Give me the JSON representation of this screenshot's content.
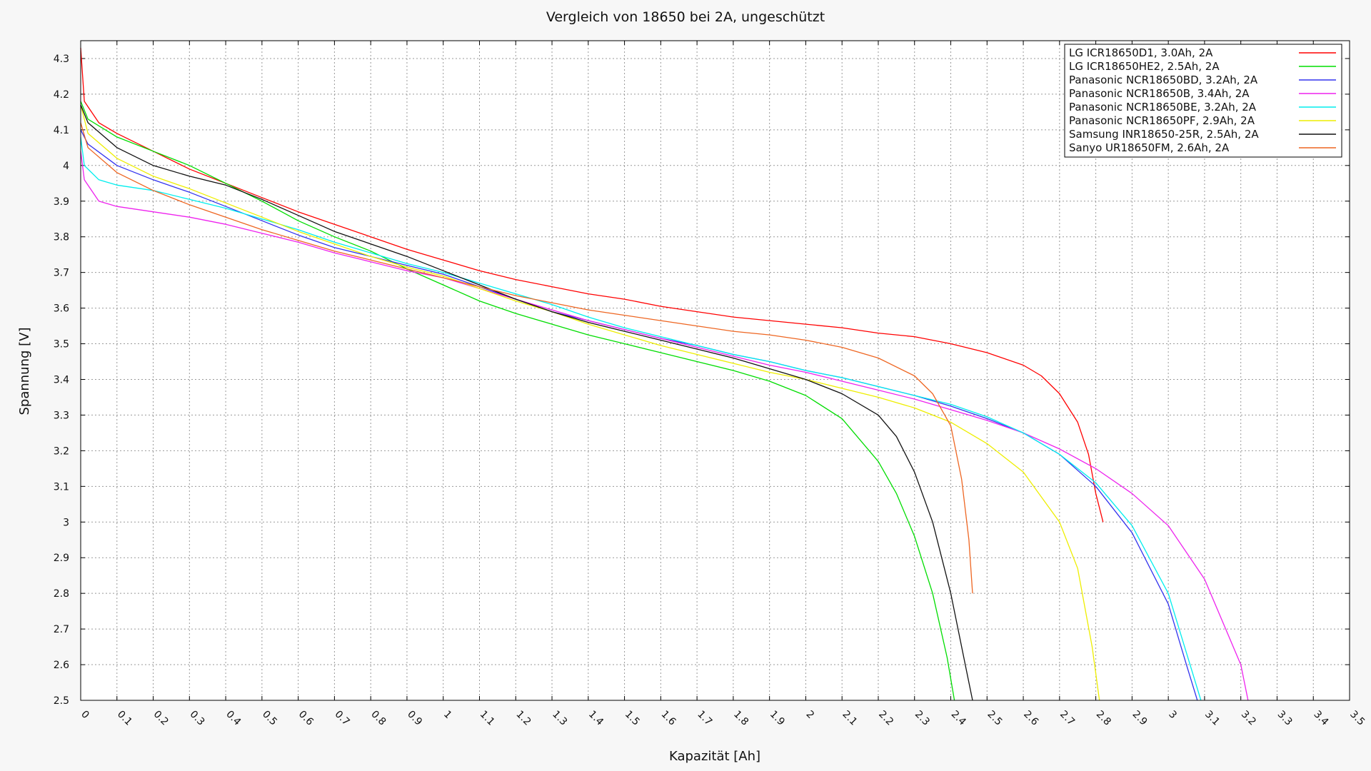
{
  "chart_data": {
    "type": "line",
    "title": "Vergleich von 18650 bei 2A, ungeschützt",
    "xlabel": "Kapazität [Ah]",
    "ylabel": "Spannung [V]",
    "xlim": [
      0,
      3.5
    ],
    "ylim": [
      2.5,
      4.35
    ],
    "xticks": [
      0,
      0.1,
      0.2,
      0.3,
      0.4,
      0.5,
      0.6,
      0.7,
      0.8,
      0.9,
      1,
      1.1,
      1.2,
      1.3,
      1.4,
      1.5,
      1.6,
      1.7,
      1.8,
      1.9,
      2,
      2.1,
      2.2,
      2.3,
      2.4,
      2.5,
      2.6,
      2.7,
      2.8,
      2.9,
      3,
      3.1,
      3.2,
      3.3,
      3.4,
      3.5
    ],
    "yticks": [
      2.5,
      2.6,
      2.7,
      2.8,
      2.9,
      3,
      3.1,
      3.2,
      3.3,
      3.4,
      3.5,
      3.6,
      3.7,
      3.8,
      3.9,
      4,
      4.1,
      4.2,
      4.3
    ],
    "grid": true,
    "legend_position": "top-right",
    "series": [
      {
        "name": "LG ICR18650D1, 3.0Ah, 2A",
        "color": "#ff0000",
        "points": [
          [
            0,
            4.33
          ],
          [
            0.01,
            4.18
          ],
          [
            0.05,
            4.12
          ],
          [
            0.1,
            4.09
          ],
          [
            0.2,
            4.04
          ],
          [
            0.3,
            3.99
          ],
          [
            0.4,
            3.95
          ],
          [
            0.5,
            3.91
          ],
          [
            0.6,
            3.87
          ],
          [
            0.7,
            3.835
          ],
          [
            0.8,
            3.8
          ],
          [
            0.9,
            3.765
          ],
          [
            1.0,
            3.735
          ],
          [
            1.1,
            3.705
          ],
          [
            1.2,
            3.68
          ],
          [
            1.3,
            3.66
          ],
          [
            1.4,
            3.64
          ],
          [
            1.5,
            3.625
          ],
          [
            1.6,
            3.605
          ],
          [
            1.7,
            3.59
          ],
          [
            1.8,
            3.575
          ],
          [
            1.9,
            3.565
          ],
          [
            2.0,
            3.555
          ],
          [
            2.1,
            3.545
          ],
          [
            2.2,
            3.53
          ],
          [
            2.3,
            3.52
          ],
          [
            2.4,
            3.5
          ],
          [
            2.5,
            3.475
          ],
          [
            2.6,
            3.44
          ],
          [
            2.65,
            3.41
          ],
          [
            2.7,
            3.36
          ],
          [
            2.75,
            3.28
          ],
          [
            2.78,
            3.19
          ],
          [
            2.8,
            3.08
          ],
          [
            2.82,
            3.0
          ]
        ]
      },
      {
        "name": "LG ICR18650HE2, 2.5Ah, 2A",
        "color": "#00dd00",
        "points": [
          [
            0,
            4.18
          ],
          [
            0.02,
            4.13
          ],
          [
            0.1,
            4.08
          ],
          [
            0.2,
            4.04
          ],
          [
            0.3,
            4.0
          ],
          [
            0.4,
            3.95
          ],
          [
            0.5,
            3.9
          ],
          [
            0.6,
            3.845
          ],
          [
            0.7,
            3.8
          ],
          [
            0.8,
            3.76
          ],
          [
            0.9,
            3.71
          ],
          [
            1.0,
            3.665
          ],
          [
            1.1,
            3.62
          ],
          [
            1.2,
            3.585
          ],
          [
            1.3,
            3.555
          ],
          [
            1.4,
            3.525
          ],
          [
            1.5,
            3.5
          ],
          [
            1.6,
            3.475
          ],
          [
            1.7,
            3.45
          ],
          [
            1.8,
            3.425
          ],
          [
            1.9,
            3.395
          ],
          [
            2.0,
            3.355
          ],
          [
            2.1,
            3.29
          ],
          [
            2.2,
            3.17
          ],
          [
            2.25,
            3.08
          ],
          [
            2.3,
            2.96
          ],
          [
            2.35,
            2.8
          ],
          [
            2.39,
            2.62
          ],
          [
            2.41,
            2.5
          ]
        ]
      },
      {
        "name": "Panasonic NCR18650BD, 3.2Ah, 2A",
        "color": "#3333ee",
        "points": [
          [
            0,
            4.1
          ],
          [
            0.02,
            4.06
          ],
          [
            0.1,
            4.0
          ],
          [
            0.2,
            3.96
          ],
          [
            0.3,
            3.925
          ],
          [
            0.4,
            3.885
          ],
          [
            0.5,
            3.845
          ],
          [
            0.6,
            3.805
          ],
          [
            0.7,
            3.77
          ],
          [
            0.8,
            3.745
          ],
          [
            0.9,
            3.72
          ],
          [
            1.0,
            3.695
          ],
          [
            1.1,
            3.66
          ],
          [
            1.2,
            3.625
          ],
          [
            1.3,
            3.59
          ],
          [
            1.4,
            3.565
          ],
          [
            1.5,
            3.54
          ],
          [
            1.6,
            3.515
          ],
          [
            1.7,
            3.495
          ],
          [
            1.8,
            3.47
          ],
          [
            1.9,
            3.45
          ],
          [
            2.0,
            3.425
          ],
          [
            2.1,
            3.405
          ],
          [
            2.2,
            3.38
          ],
          [
            2.3,
            3.355
          ],
          [
            2.4,
            3.325
          ],
          [
            2.5,
            3.29
          ],
          [
            2.6,
            3.25
          ],
          [
            2.7,
            3.19
          ],
          [
            2.8,
            3.1
          ],
          [
            2.9,
            2.97
          ],
          [
            3.0,
            2.77
          ],
          [
            3.05,
            2.6
          ],
          [
            3.08,
            2.5
          ]
        ]
      },
      {
        "name": "Panasonic NCR18650B, 3.4Ah, 2A",
        "color": "#ee22ee",
        "points": [
          [
            0,
            4.04
          ],
          [
            0.01,
            3.96
          ],
          [
            0.05,
            3.9
          ],
          [
            0.1,
            3.885
          ],
          [
            0.2,
            3.87
          ],
          [
            0.3,
            3.855
          ],
          [
            0.4,
            3.835
          ],
          [
            0.5,
            3.81
          ],
          [
            0.6,
            3.785
          ],
          [
            0.7,
            3.755
          ],
          [
            0.8,
            3.73
          ],
          [
            0.9,
            3.705
          ],
          [
            1.0,
            3.685
          ],
          [
            1.1,
            3.655
          ],
          [
            1.2,
            3.625
          ],
          [
            1.3,
            3.595
          ],
          [
            1.4,
            3.565
          ],
          [
            1.5,
            3.54
          ],
          [
            1.6,
            3.515
          ],
          [
            1.7,
            3.49
          ],
          [
            1.8,
            3.465
          ],
          [
            1.9,
            3.44
          ],
          [
            2.0,
            3.42
          ],
          [
            2.1,
            3.395
          ],
          [
            2.2,
            3.37
          ],
          [
            2.3,
            3.345
          ],
          [
            2.4,
            3.315
          ],
          [
            2.5,
            3.285
          ],
          [
            2.6,
            3.25
          ],
          [
            2.7,
            3.205
          ],
          [
            2.8,
            3.15
          ],
          [
            2.9,
            3.08
          ],
          [
            3.0,
            2.99
          ],
          [
            3.1,
            2.84
          ],
          [
            3.2,
            2.6
          ],
          [
            3.22,
            2.5
          ]
        ]
      },
      {
        "name": "Panasonic NCR18650BE, 3.2Ah, 2A",
        "color": "#00eeee",
        "points": [
          [
            0,
            4.08
          ],
          [
            0.01,
            4.0
          ],
          [
            0.05,
            3.96
          ],
          [
            0.1,
            3.945
          ],
          [
            0.2,
            3.93
          ],
          [
            0.3,
            3.905
          ],
          [
            0.4,
            3.88
          ],
          [
            0.5,
            3.85
          ],
          [
            0.6,
            3.82
          ],
          [
            0.7,
            3.785
          ],
          [
            0.8,
            3.755
          ],
          [
            0.9,
            3.725
          ],
          [
            1.0,
            3.7
          ],
          [
            1.1,
            3.67
          ],
          [
            1.2,
            3.64
          ],
          [
            1.3,
            3.61
          ],
          [
            1.4,
            3.575
          ],
          [
            1.5,
            3.545
          ],
          [
            1.6,
            3.52
          ],
          [
            1.7,
            3.495
          ],
          [
            1.8,
            3.47
          ],
          [
            1.9,
            3.45
          ],
          [
            2.0,
            3.425
          ],
          [
            2.1,
            3.405
          ],
          [
            2.2,
            3.38
          ],
          [
            2.3,
            3.355
          ],
          [
            2.4,
            3.33
          ],
          [
            2.5,
            3.295
          ],
          [
            2.6,
            3.25
          ],
          [
            2.7,
            3.19
          ],
          [
            2.8,
            3.11
          ],
          [
            2.9,
            2.99
          ],
          [
            3.0,
            2.8
          ],
          [
            3.06,
            2.6
          ],
          [
            3.09,
            2.5
          ]
        ]
      },
      {
        "name": "Panasonic NCR18650PF, 2.9Ah, 2A",
        "color": "#eeee00",
        "points": [
          [
            0,
            4.17
          ],
          [
            0.02,
            4.09
          ],
          [
            0.1,
            4.02
          ],
          [
            0.2,
            3.97
          ],
          [
            0.3,
            3.935
          ],
          [
            0.4,
            3.895
          ],
          [
            0.5,
            3.855
          ],
          [
            0.6,
            3.815
          ],
          [
            0.7,
            3.78
          ],
          [
            0.8,
            3.745
          ],
          [
            0.9,
            3.715
          ],
          [
            1.0,
            3.69
          ],
          [
            1.1,
            3.655
          ],
          [
            1.2,
            3.62
          ],
          [
            1.3,
            3.59
          ],
          [
            1.4,
            3.555
          ],
          [
            1.5,
            3.525
          ],
          [
            1.6,
            3.495
          ],
          [
            1.7,
            3.47
          ],
          [
            1.8,
            3.445
          ],
          [
            1.9,
            3.42
          ],
          [
            2.0,
            3.4
          ],
          [
            2.1,
            3.375
          ],
          [
            2.2,
            3.35
          ],
          [
            2.3,
            3.32
          ],
          [
            2.4,
            3.28
          ],
          [
            2.5,
            3.22
          ],
          [
            2.6,
            3.14
          ],
          [
            2.7,
            3.0
          ],
          [
            2.75,
            2.87
          ],
          [
            2.79,
            2.65
          ],
          [
            2.81,
            2.5
          ]
        ]
      },
      {
        "name": "Samsung INR18650-25R, 2.5Ah, 2A",
        "color": "#111111",
        "points": [
          [
            0,
            4.17
          ],
          [
            0.02,
            4.12
          ],
          [
            0.1,
            4.05
          ],
          [
            0.2,
            4.0
          ],
          [
            0.3,
            3.97
          ],
          [
            0.4,
            3.945
          ],
          [
            0.5,
            3.905
          ],
          [
            0.6,
            3.86
          ],
          [
            0.7,
            3.815
          ],
          [
            0.8,
            3.78
          ],
          [
            0.9,
            3.745
          ],
          [
            1.0,
            3.705
          ],
          [
            1.1,
            3.665
          ],
          [
            1.2,
            3.625
          ],
          [
            1.3,
            3.59
          ],
          [
            1.4,
            3.56
          ],
          [
            1.5,
            3.535
          ],
          [
            1.6,
            3.51
          ],
          [
            1.7,
            3.485
          ],
          [
            1.8,
            3.46
          ],
          [
            1.9,
            3.43
          ],
          [
            2.0,
            3.4
          ],
          [
            2.1,
            3.36
          ],
          [
            2.2,
            3.3
          ],
          [
            2.25,
            3.24
          ],
          [
            2.3,
            3.14
          ],
          [
            2.35,
            3.0
          ],
          [
            2.4,
            2.8
          ],
          [
            2.44,
            2.6
          ],
          [
            2.46,
            2.5
          ]
        ]
      },
      {
        "name": "Sanyo UR18650FM, 2.6Ah, 2A",
        "color": "#ee6622",
        "points": [
          [
            0,
            4.12
          ],
          [
            0.02,
            4.05
          ],
          [
            0.1,
            3.98
          ],
          [
            0.2,
            3.93
          ],
          [
            0.3,
            3.89
          ],
          [
            0.4,
            3.855
          ],
          [
            0.5,
            3.82
          ],
          [
            0.6,
            3.79
          ],
          [
            0.7,
            3.76
          ],
          [
            0.8,
            3.735
          ],
          [
            0.9,
            3.71
          ],
          [
            1.0,
            3.685
          ],
          [
            1.1,
            3.66
          ],
          [
            1.2,
            3.635
          ],
          [
            1.3,
            3.615
          ],
          [
            1.4,
            3.595
          ],
          [
            1.5,
            3.58
          ],
          [
            1.6,
            3.565
          ],
          [
            1.7,
            3.55
          ],
          [
            1.8,
            3.535
          ],
          [
            1.9,
            3.525
          ],
          [
            2.0,
            3.51
          ],
          [
            2.1,
            3.49
          ],
          [
            2.2,
            3.46
          ],
          [
            2.3,
            3.41
          ],
          [
            2.35,
            3.36
          ],
          [
            2.4,
            3.27
          ],
          [
            2.43,
            3.12
          ],
          [
            2.45,
            2.95
          ],
          [
            2.46,
            2.8
          ]
        ]
      }
    ]
  }
}
